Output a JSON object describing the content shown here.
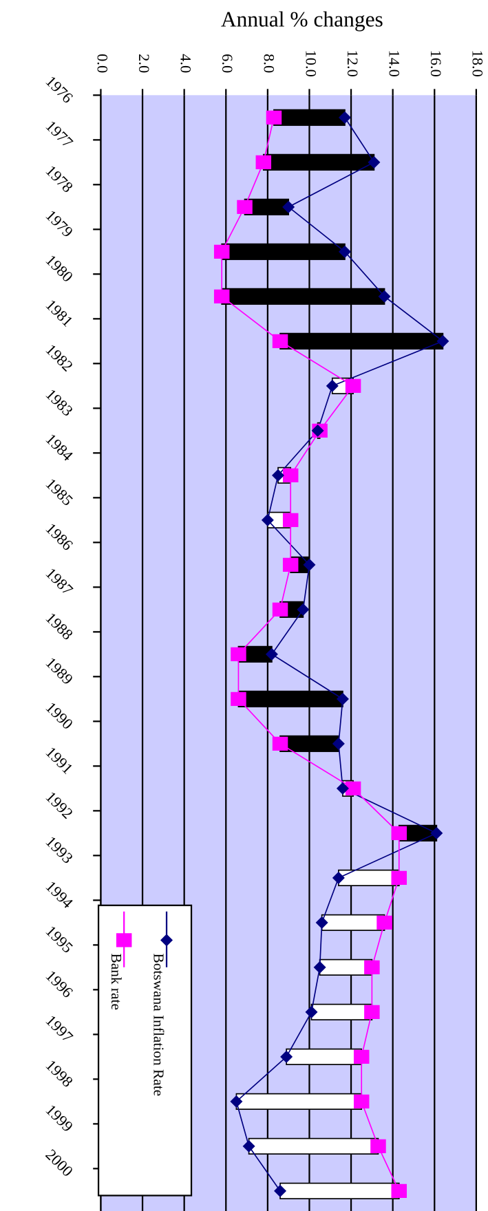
{
  "chart_data": {
    "type": "bar",
    "title": "Annual % changes",
    "categories": [
      "1976",
      "1977",
      "1978",
      "1979",
      "1980",
      "1981",
      "1982",
      "1983",
      "1984",
      "1985",
      "1986",
      "1987",
      "1988",
      "1989",
      "1990",
      "1991",
      "1992",
      "1993",
      "1994",
      "1995",
      "1996",
      "1997",
      "1998",
      "1999",
      "2000"
    ],
    "series": [
      {
        "name": "Botswana Inflation Rate",
        "color": "#000080",
        "values": [
          11.7,
          13.1,
          9.0,
          11.7,
          13.6,
          16.4,
          11.1,
          10.4,
          8.5,
          8.0,
          10.0,
          9.7,
          8.2,
          11.6,
          11.4,
          11.6,
          16.1,
          11.4,
          10.6,
          10.5,
          10.1,
          8.9,
          6.5,
          7.1,
          8.6
        ]
      },
      {
        "name": "Bank rate",
        "color": "#ff00ff",
        "values": [
          8.3,
          7.8,
          6.9,
          5.8,
          5.8,
          8.6,
          12.1,
          10.5,
          9.1,
          9.1,
          9.1,
          8.6,
          6.6,
          6.6,
          8.6,
          12.1,
          14.3,
          14.3,
          13.6,
          13.0,
          13.0,
          12.5,
          12.5,
          13.3,
          14.3
        ]
      }
    ],
    "xlim": [
      0,
      18
    ],
    "xticks": [
      {
        "value": 0,
        "label": "0.0"
      },
      {
        "value": 2,
        "label": "2.0"
      },
      {
        "value": 4,
        "label": "4.0"
      },
      {
        "value": 6,
        "label": "6.0"
      },
      {
        "value": 8,
        "label": "8.0"
      },
      {
        "value": 10,
        "label": "10.0"
      },
      {
        "value": 12,
        "label": "12.0"
      },
      {
        "value": 14,
        "label": "14.0"
      },
      {
        "value": 16,
        "label": "16.0"
      },
      {
        "value": 18,
        "label": "18.0"
      }
    ],
    "grid": true,
    "plot_background": "#ccccff"
  }
}
